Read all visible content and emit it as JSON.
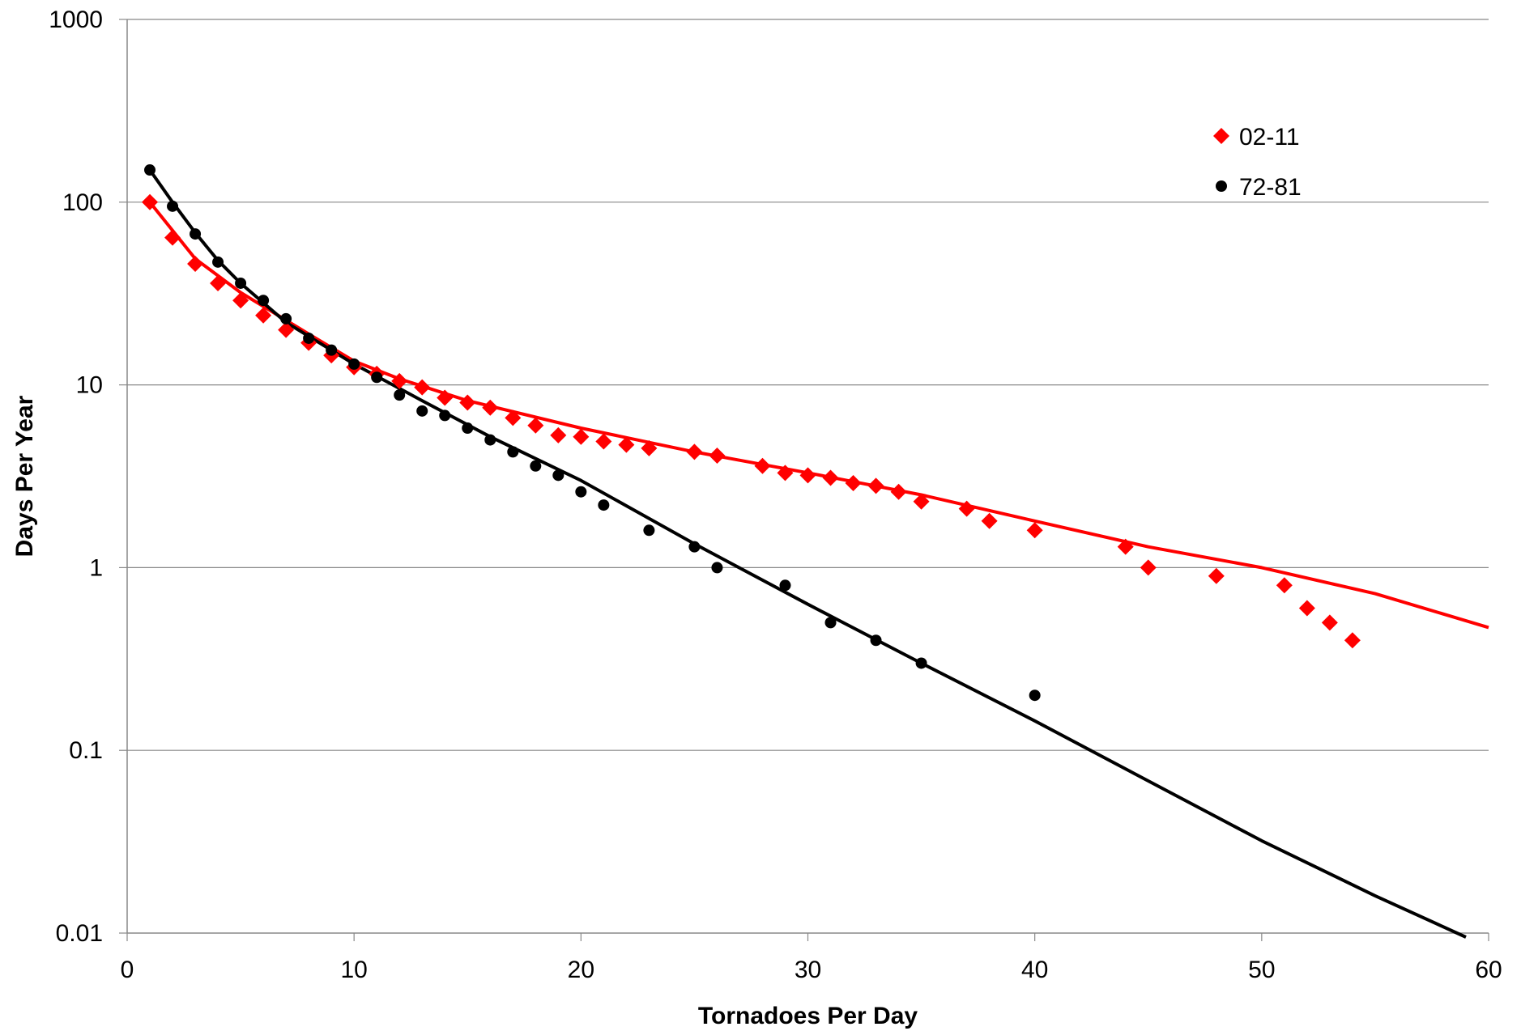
{
  "chart_data": {
    "type": "scatter",
    "title": "",
    "xlabel": "Tornadoes Per Day",
    "ylabel": "Days Per Year",
    "xlim": [
      0,
      60
    ],
    "ylim": [
      0.01,
      1000
    ],
    "yscale": "log",
    "grid": "horizontal",
    "legend_position": "top-right",
    "x_ticks": [
      "0",
      "10",
      "20",
      "30",
      "40",
      "50",
      "60"
    ],
    "y_ticks": [
      "0.01",
      "0.1",
      "1",
      "10",
      "100",
      "1000"
    ],
    "series": [
      {
        "name": "02-11",
        "marker": "diamond",
        "color": "#ff0000",
        "points": [
          [
            1,
            100
          ],
          [
            2,
            64
          ],
          [
            3,
            46
          ],
          [
            4,
            36
          ],
          [
            5,
            29
          ],
          [
            6,
            24
          ],
          [
            7,
            20
          ],
          [
            8,
            17
          ],
          [
            9,
            14.5
          ],
          [
            10,
            12.5
          ],
          [
            11,
            11.5
          ],
          [
            12,
            10.5
          ],
          [
            13,
            9.7
          ],
          [
            14,
            8.5
          ],
          [
            15,
            8
          ],
          [
            16,
            7.5
          ],
          [
            17,
            6.6
          ],
          [
            18,
            6
          ],
          [
            19,
            5.3
          ],
          [
            20,
            5.2
          ],
          [
            21,
            4.9
          ],
          [
            22,
            4.7
          ],
          [
            23,
            4.5
          ],
          [
            25,
            4.3
          ],
          [
            26,
            4.1
          ],
          [
            28,
            3.6
          ],
          [
            29,
            3.3
          ],
          [
            30,
            3.2
          ],
          [
            31,
            3.1
          ],
          [
            32,
            2.9
          ],
          [
            33,
            2.8
          ],
          [
            34,
            2.6
          ],
          [
            35,
            2.3
          ],
          [
            37,
            2.1
          ],
          [
            38,
            1.8
          ],
          [
            40,
            1.6
          ],
          [
            44,
            1.3
          ],
          [
            45,
            1.0
          ],
          [
            48,
            0.9
          ],
          [
            51,
            0.8
          ],
          [
            52,
            0.6
          ],
          [
            53,
            0.5
          ],
          [
            54,
            0.4
          ]
        ],
        "trend": [
          [
            1,
            100
          ],
          [
            3,
            49
          ],
          [
            5,
            32
          ],
          [
            8,
            19
          ],
          [
            10,
            13.5
          ],
          [
            12,
            10.8
          ],
          [
            15,
            8.2
          ],
          [
            20,
            5.8
          ],
          [
            25,
            4.3
          ],
          [
            30,
            3.3
          ],
          [
            35,
            2.5
          ],
          [
            40,
            1.8
          ],
          [
            45,
            1.3
          ],
          [
            50,
            1.0
          ],
          [
            55,
            0.72
          ],
          [
            60,
            0.47
          ]
        ]
      },
      {
        "name": "72-81",
        "marker": "circle",
        "color": "#000000",
        "points": [
          [
            1,
            150
          ],
          [
            2,
            95
          ],
          [
            3,
            67
          ],
          [
            4,
            47
          ],
          [
            5,
            36
          ],
          [
            6,
            29
          ],
          [
            7,
            23
          ],
          [
            8,
            18
          ],
          [
            9,
            15.5
          ],
          [
            10,
            13
          ],
          [
            11,
            11
          ],
          [
            12,
            8.8
          ],
          [
            13,
            7.2
          ],
          [
            14,
            6.8
          ],
          [
            15,
            5.8
          ],
          [
            16,
            5.0
          ],
          [
            17,
            4.3
          ],
          [
            18,
            3.6
          ],
          [
            19,
            3.2
          ],
          [
            20,
            2.6
          ],
          [
            21,
            2.2
          ],
          [
            23,
            1.6
          ],
          [
            25,
            1.3
          ],
          [
            26,
            1.0
          ],
          [
            29,
            0.8
          ],
          [
            31,
            0.5
          ],
          [
            33,
            0.4
          ],
          [
            35,
            0.3
          ],
          [
            40,
            0.2
          ]
        ],
        "trend": [
          [
            1,
            150
          ],
          [
            2,
            100
          ],
          [
            3,
            68
          ],
          [
            4,
            48
          ],
          [
            5,
            36
          ],
          [
            7,
            22
          ],
          [
            10,
            13
          ],
          [
            13,
            8.2
          ],
          [
            16,
            5.2
          ],
          [
            20,
            3.0
          ],
          [
            25,
            1.35
          ],
          [
            30,
            0.63
          ],
          [
            35,
            0.3
          ],
          [
            40,
            0.145
          ],
          [
            45,
            0.068
          ],
          [
            50,
            0.032
          ],
          [
            55,
            0.016
          ],
          [
            59,
            0.0095
          ]
        ]
      }
    ]
  }
}
